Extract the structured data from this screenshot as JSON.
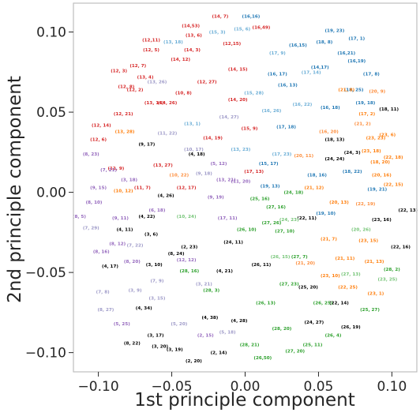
{
  "chart_data": {
    "type": "scatter",
    "title": "",
    "xlabel": "1st principle component",
    "ylabel": "2nd principle component",
    "xlim": [
      -0.117,
      0.117
    ],
    "ylim": [
      -0.112,
      0.118
    ],
    "xticks": [
      -0.1,
      -0.05,
      0.0,
      0.05,
      0.1
    ],
    "xtick_labels": [
      "−0.10",
      "−0.05",
      "0.00",
      "0.05",
      "0.10"
    ],
    "yticks": [
      0.1,
      0.05,
      0.0,
      -0.05,
      -0.1
    ],
    "ytick_labels": [
      "0.10",
      "0.05",
      "0.00",
      "−0.05",
      "−0.10"
    ],
    "grid": false,
    "legend": false,
    "point_label_format": "(i, j)",
    "series_colors": [
      "#d62728",
      "#ff7f0e",
      "#1f77b4",
      "#2ca02c",
      "#9467bd",
      "#000000",
      "#9e9ac8",
      "#6baed6",
      "#fd8d3c",
      "#74c476"
    ],
    "points": [
      {
        "label": "(16,16)",
        "x": 0.004,
        "y": 0.109,
        "c": 2
      },
      {
        "label": "(14, 7)",
        "x": -0.017,
        "y": 0.109,
        "c": 0
      },
      {
        "label": "(14,53)",
        "x": -0.037,
        "y": 0.103,
        "c": 0
      },
      {
        "label": "(16,49)",
        "x": 0.011,
        "y": 0.102,
        "c": 0
      },
      {
        "label": "(13, 6)",
        "x": -0.035,
        "y": 0.097,
        "c": 0
      },
      {
        "label": "(12,11)",
        "x": -0.064,
        "y": 0.094,
        "c": 0
      },
      {
        "label": "(12, 5)",
        "x": -0.064,
        "y": 0.088,
        "c": 0
      },
      {
        "label": "(14, 3)",
        "x": -0.036,
        "y": 0.088,
        "c": 0
      },
      {
        "label": "(12,15)",
        "x": -0.009,
        "y": 0.092,
        "c": 0
      },
      {
        "label": "(16,15)",
        "x": 0.036,
        "y": 0.091,
        "c": 2
      },
      {
        "label": "(16,21)",
        "x": 0.069,
        "y": 0.086,
        "c": 2
      },
      {
        "label": "(16,19)",
        "x": 0.076,
        "y": 0.081,
        "c": 2
      },
      {
        "label": "(18, 8)",
        "x": 0.054,
        "y": 0.093,
        "c": 2
      },
      {
        "label": "(12, 7)",
        "x": -0.073,
        "y": 0.078,
        "c": 0
      },
      {
        "label": "(14, 12)",
        "x": -0.044,
        "y": 0.082,
        "c": 0
      },
      {
        "label": "(13, 4)",
        "x": -0.068,
        "y": 0.071,
        "c": 0
      },
      {
        "label": "(12, 8)",
        "x": -0.081,
        "y": 0.065,
        "c": 0
      },
      {
        "label": "(12, 2)",
        "x": -0.075,
        "y": 0.063,
        "c": 0
      },
      {
        "label": "(14, 15)",
        "x": -0.005,
        "y": 0.076,
        "c": 0
      },
      {
        "label": "(16, 17)",
        "x": 0.022,
        "y": 0.073,
        "c": 2
      },
      {
        "label": "(16, 13)",
        "x": 0.029,
        "y": 0.066,
        "c": 2
      },
      {
        "label": "(14,17)",
        "x": 0.051,
        "y": 0.077,
        "c": 2
      },
      {
        "label": "(17, 8)",
        "x": 0.086,
        "y": 0.073,
        "c": 2
      },
      {
        "label": "(13, 14)",
        "x": -0.062,
        "y": 0.055,
        "c": 0
      },
      {
        "label": "(14, 26)",
        "x": -0.053,
        "y": 0.055,
        "c": 0
      },
      {
        "label": "(14, 20)",
        "x": -0.005,
        "y": 0.057,
        "c": 0
      },
      {
        "label": "(12, 21)",
        "x": -0.083,
        "y": 0.048,
        "c": 0
      },
      {
        "label": "(12, 14)",
        "x": -0.098,
        "y": 0.041,
        "c": 0
      },
      {
        "label": "(13, 28)",
        "x": -0.082,
        "y": 0.037,
        "c": 1
      },
      {
        "label": "(16, 18)",
        "x": 0.058,
        "y": 0.052,
        "c": 2
      },
      {
        "label": "(18, 11)",
        "x": 0.098,
        "y": 0.051,
        "c": 5
      },
      {
        "label": "(17, 2)",
        "x": 0.083,
        "y": 0.048,
        "c": 1
      },
      {
        "label": "(21, 2)",
        "x": 0.08,
        "y": 0.042,
        "c": 8
      },
      {
        "label": "(16, 20)",
        "x": 0.057,
        "y": 0.037,
        "c": 8
      },
      {
        "label": "(12, 6)",
        "x": -0.1,
        "y": 0.032,
        "c": 0
      },
      {
        "label": "(8, 23)",
        "x": -0.105,
        "y": 0.023,
        "c": 4
      },
      {
        "label": "(12, 9)",
        "x": -0.088,
        "y": 0.014,
        "c": 0
      },
      {
        "label": "(13, 27)",
        "x": -0.056,
        "y": 0.016,
        "c": 0
      },
      {
        "label": "(4, 18)",
        "x": -0.033,
        "y": 0.023,
        "c": 5
      },
      {
        "label": "(3, 18)",
        "x": -0.079,
        "y": 0.007,
        "c": 4
      },
      {
        "label": "(10, 12)",
        "x": -0.083,
        "y": 0.0,
        "c": 1
      },
      {
        "label": "(11, 7)",
        "x": -0.07,
        "y": 0.002,
        "c": 0
      },
      {
        "label": "(9, 15)",
        "x": -0.1,
        "y": 0.002,
        "c": 4
      },
      {
        "label": "(4, 26)",
        "x": -0.054,
        "y": -0.003,
        "c": 5
      },
      {
        "label": "(12, 17)",
        "x": -0.04,
        "y": 0.002,
        "c": 0
      },
      {
        "label": "(8, 10)",
        "x": -0.103,
        "y": -0.007,
        "c": 4
      },
      {
        "label": "(9, 11)",
        "x": -0.085,
        "y": -0.017,
        "c": 4
      },
      {
        "label": "(4, 22)",
        "x": -0.067,
        "y": -0.016,
        "c": 5
      },
      {
        "label": "(4, 11)",
        "x": -0.082,
        "y": -0.024,
        "c": 5
      },
      {
        "label": "(3, 6)",
        "x": -0.064,
        "y": -0.027,
        "c": 5
      },
      {
        "label": "(7, 29)",
        "x": -0.105,
        "y": -0.023,
        "c": 6
      },
      {
        "label": "(8, 5)",
        "x": -0.113,
        "y": -0.016,
        "c": 4
      },
      {
        "label": "(8, 16)",
        "x": -0.098,
        "y": -0.038,
        "c": 4
      },
      {
        "label": "(4, 17)",
        "x": -0.092,
        "y": -0.047,
        "c": 5
      },
      {
        "label": "(8, 20)",
        "x": -0.077,
        "y": -0.044,
        "c": 4
      },
      {
        "label": "(3, 10)",
        "x": -0.062,
        "y": -0.046,
        "c": 5
      },
      {
        "label": "(7, 9)",
        "x": -0.06,
        "y": -0.056,
        "c": 6
      },
      {
        "label": "(4, 34)",
        "x": -0.069,
        "y": -0.073,
        "c": 5
      },
      {
        "label": "(5, 25)",
        "x": -0.084,
        "y": -0.083,
        "c": 4
      },
      {
        "label": "(8, 22)",
        "x": -0.077,
        "y": -0.095,
        "c": 5
      },
      {
        "label": "(3, 20)",
        "x": -0.058,
        "y": -0.097,
        "c": 5
      },
      {
        "label": "(3, 19)",
        "x": -0.048,
        "y": -0.099,
        "c": 5
      },
      {
        "label": "(4, 38)",
        "x": -0.024,
        "y": -0.079,
        "c": 5
      },
      {
        "label": "(4, 28)",
        "x": -0.004,
        "y": -0.081,
        "c": 5
      },
      {
        "label": "(28, 3)",
        "x": -0.023,
        "y": -0.062,
        "c": 3
      },
      {
        "label": "(5, 18)",
        "x": -0.012,
        "y": -0.088,
        "c": 6
      },
      {
        "label": "(2, 14)",
        "x": -0.018,
        "y": -0.101,
        "c": 5
      },
      {
        "label": "(26,50)",
        "x": 0.012,
        "y": -0.104,
        "c": 3
      },
      {
        "label": "(27, 20)",
        "x": 0.034,
        "y": -0.1,
        "c": 3
      },
      {
        "label": "(25, 11)",
        "x": 0.046,
        "y": -0.096,
        "c": 3
      },
      {
        "label": "(26, 19)",
        "x": 0.072,
        "y": -0.085,
        "c": 5
      },
      {
        "label": "(22, 14)",
        "x": 0.064,
        "y": -0.07,
        "c": 5
      },
      {
        "label": "(22, 25)",
        "x": 0.07,
        "y": -0.06,
        "c": 1
      },
      {
        "label": "(23, 1)",
        "x": 0.089,
        "y": -0.064,
        "c": 1
      },
      {
        "label": "(22, 16)",
        "x": 0.106,
        "y": -0.035,
        "c": 5
      },
      {
        "label": "(28, 2)",
        "x": 0.1,
        "y": -0.049,
        "c": 3
      },
      {
        "label": "(21, 11)",
        "x": 0.068,
        "y": -0.042,
        "c": 1
      },
      {
        "label": "(23, 15)",
        "x": 0.084,
        "y": -0.031,
        "c": 1
      },
      {
        "label": "(21, 7)",
        "x": 0.057,
        "y": -0.03,
        "c": 1
      },
      {
        "label": "(23, 16)",
        "x": 0.093,
        "y": -0.018,
        "c": 5
      },
      {
        "label": "(22, 13)",
        "x": 0.111,
        "y": -0.012,
        "c": 5
      },
      {
        "label": "(22, 15)",
        "x": 0.101,
        "y": 0.004,
        "c": 1
      },
      {
        "label": "(19, 21)",
        "x": 0.09,
        "y": 0.001,
        "c": 2
      },
      {
        "label": "(18, 20)",
        "x": 0.092,
        "y": 0.018,
        "c": 1
      },
      {
        "label": "(20, 16)",
        "x": 0.093,
        "y": 0.01,
        "c": 1
      },
      {
        "label": "(18, 22)",
        "x": 0.073,
        "y": 0.012,
        "c": 2
      },
      {
        "label": "(23, 6)",
        "x": 0.097,
        "y": 0.035,
        "c": 1
      },
      {
        "label": "(24, 3)",
        "x": 0.073,
        "y": 0.024,
        "c": 5
      },
      {
        "label": "(19, 10)",
        "x": 0.055,
        "y": -0.014,
        "c": 2
      },
      {
        "label": "(22, 11)",
        "x": 0.042,
        "y": -0.017,
        "c": 5
      },
      {
        "label": "(27, 16)",
        "x": 0.021,
        "y": -0.01,
        "c": 3
      },
      {
        "label": "(27, 10)",
        "x": 0.027,
        "y": -0.025,
        "c": 3
      },
      {
        "label": "(27, 7)",
        "x": 0.037,
        "y": -0.041,
        "c": 3
      },
      {
        "label": "(26, 11)",
        "x": 0.011,
        "y": -0.046,
        "c": 5
      },
      {
        "label": "(26, 25)",
        "x": 0.053,
        "y": -0.07,
        "c": 3
      },
      {
        "label": "(23, 10)",
        "x": 0.058,
        "y": -0.053,
        "c": 1
      },
      {
        "label": "(28, 16)",
        "x": -0.038,
        "y": -0.05,
        "c": 3
      },
      {
        "label": "(12, 12)",
        "x": -0.04,
        "y": -0.043,
        "c": 4
      },
      {
        "label": "(8, 24)",
        "x": -0.047,
        "y": -0.039,
        "c": 5
      },
      {
        "label": "(24, 11)",
        "x": -0.008,
        "y": -0.032,
        "c": 5
      },
      {
        "label": "(26, 10)",
        "x": 0.001,
        "y": -0.024,
        "c": 3
      },
      {
        "label": "(17, 11)",
        "x": -0.012,
        "y": -0.017,
        "c": 4
      },
      {
        "label": "(15, 17)",
        "x": 0.016,
        "y": 0.017,
        "c": 2
      },
      {
        "label": "(13, 21)",
        "x": -0.013,
        "y": 0.007,
        "c": 4
      },
      {
        "label": "(17, 13)",
        "x": 0.006,
        "y": 0.012,
        "c": 0
      },
      {
        "label": "(19, 13)",
        "x": 0.017,
        "y": 0.003,
        "c": 2
      },
      {
        "label": "(18, 16)",
        "x": 0.049,
        "y": 0.01,
        "c": 2
      },
      {
        "label": "(20, 11)",
        "x": 0.04,
        "y": 0.022,
        "c": 8
      },
      {
        "label": "(17, 18)",
        "x": 0.028,
        "y": 0.04,
        "c": 2
      },
      {
        "label": "(15, 9)",
        "x": 0.003,
        "y": 0.039,
        "c": 0
      },
      {
        "label": "(14, 19)",
        "x": -0.022,
        "y": 0.033,
        "c": 0
      },
      {
        "label": "(13, 1)",
        "x": -0.036,
        "y": 0.042,
        "c": 7
      },
      {
        "label": "(10, 17)",
        "x": -0.035,
        "y": 0.026,
        "c": 6
      },
      {
        "label": "(5, 12)",
        "x": -0.018,
        "y": 0.017,
        "c": 4
      },
      {
        "label": "(11, 20)",
        "x": -0.003,
        "y": 0.006,
        "c": 4
      },
      {
        "label": "(9, 19)",
        "x": -0.02,
        "y": -0.004,
        "c": 4
      },
      {
        "label": "(24, 18)",
        "x": 0.033,
        "y": -0.001,
        "c": 3
      },
      {
        "label": "(25, 16)",
        "x": 0.01,
        "y": -0.005,
        "c": 3
      },
      {
        "label": "(21, 12)",
        "x": 0.047,
        "y": 0.002,
        "c": 1
      },
      {
        "label": "(16, 22)",
        "x": 0.039,
        "y": 0.054,
        "c": 7
      },
      {
        "label": "(18, 25)",
        "x": 0.074,
        "y": 0.063,
        "c": 2
      },
      {
        "label": "(15, 28)",
        "x": 0.006,
        "y": 0.061,
        "c": 7
      },
      {
        "label": "(12, 27)",
        "x": -0.026,
        "y": 0.068,
        "c": 0
      },
      {
        "label": "(10, 8)",
        "x": -0.042,
        "y": 0.061,
        "c": 0
      },
      {
        "label": "(11, 22)",
        "x": -0.053,
        "y": 0.036,
        "c": 6
      },
      {
        "label": "(7, 21)",
        "x": -0.093,
        "y": 0.013,
        "c": 4
      },
      {
        "label": "(9, 17)",
        "x": -0.067,
        "y": 0.029,
        "c": 5
      },
      {
        "label": "(12, 3)",
        "x": -0.086,
        "y": 0.075,
        "c": 0
      },
      {
        "label": "(15, 3)",
        "x": -0.019,
        "y": 0.099,
        "c": 7
      },
      {
        "label": "(17, 9)",
        "x": 0.022,
        "y": 0.086,
        "c": 7
      },
      {
        "label": "(17, 14)",
        "x": 0.045,
        "y": 0.074,
        "c": 7
      },
      {
        "label": "(21, 8)",
        "x": 0.069,
        "y": 0.063,
        "c": 1
      },
      {
        "label": "(20, 9)",
        "x": 0.09,
        "y": 0.062,
        "c": 8
      },
      {
        "label": "(19, 18)",
        "x": 0.082,
        "y": 0.055,
        "c": 2
      },
      {
        "label": "(23, 23)",
        "x": 0.089,
        "y": 0.033,
        "c": 1
      },
      {
        "label": "(22, 18)",
        "x": 0.101,
        "y": 0.021,
        "c": 1
      },
      {
        "label": "(23, 18)",
        "x": 0.086,
        "y": 0.025,
        "c": 1
      },
      {
        "label": "(22, 19)",
        "x": 0.082,
        "y": -0.008,
        "c": 8
      },
      {
        "label": "(20, 13)",
        "x": 0.064,
        "y": -0.007,
        "c": 1
      },
      {
        "label": "(21, 13)",
        "x": 0.088,
        "y": -0.044,
        "c": 1
      },
      {
        "label": "(27, 13)",
        "x": 0.072,
        "y": -0.052,
        "c": 9
      },
      {
        "label": "(24, 27)",
        "x": 0.047,
        "y": -0.082,
        "c": 5
      },
      {
        "label": "(28, 20)",
        "x": 0.025,
        "y": -0.086,
        "c": 3
      },
      {
        "label": "(26, 13)",
        "x": 0.014,
        "y": -0.07,
        "c": 3
      },
      {
        "label": "(28, 21)",
        "x": 0.003,
        "y": -0.096,
        "c": 3
      },
      {
        "label": "(2, 15)",
        "x": -0.027,
        "y": -0.09,
        "c": 4
      },
      {
        "label": "(5, 20)",
        "x": -0.045,
        "y": -0.083,
        "c": 6
      },
      {
        "label": "(3, 17)",
        "x": -0.061,
        "y": -0.09,
        "c": 5
      },
      {
        "label": "(3, 15)",
        "x": -0.06,
        "y": -0.067,
        "c": 6
      },
      {
        "label": "(3, 9)",
        "x": -0.075,
        "y": -0.062,
        "c": 6
      },
      {
        "label": "(7, 8)",
        "x": -0.097,
        "y": -0.063,
        "c": 6
      },
      {
        "label": "(8, 12)",
        "x": -0.087,
        "y": -0.033,
        "c": 4
      },
      {
        "label": "(7, 22)",
        "x": -0.075,
        "y": -0.034,
        "c": 6
      },
      {
        "label": "(2, 23)",
        "x": -0.038,
        "y": -0.035,
        "c": 5
      },
      {
        "label": "(3, 21)",
        "x": -0.028,
        "y": -0.058,
        "c": 6
      },
      {
        "label": "(4, 21)",
        "x": -0.014,
        "y": -0.05,
        "c": 5
      },
      {
        "label": "(27, 23)",
        "x": 0.03,
        "y": -0.058,
        "c": 3
      },
      {
        "label": "(25, 20)",
        "x": 0.043,
        "y": -0.06,
        "c": 5
      },
      {
        "label": "(21, 20)",
        "x": 0.041,
        "y": -0.045,
        "c": 8
      },
      {
        "label": "(26, 15)",
        "x": 0.024,
        "y": -0.041,
        "c": 9
      },
      {
        "label": "(27, 26)",
        "x": 0.018,
        "y": -0.02,
        "c": 3
      },
      {
        "label": "(24, 23)",
        "x": 0.03,
        "y": -0.018,
        "c": 9
      },
      {
        "label": "(17, 23)",
        "x": 0.025,
        "y": 0.023,
        "c": 7
      },
      {
        "label": "(13, 23)",
        "x": -0.003,
        "y": 0.026,
        "c": 7
      },
      {
        "label": "(9, 18)",
        "x": -0.028,
        "y": 0.011,
        "c": 6
      },
      {
        "label": "(10, 22)",
        "x": -0.045,
        "y": 0.01,
        "c": 8
      },
      {
        "label": "(10, 24)",
        "x": -0.04,
        "y": -0.016,
        "c": 9
      },
      {
        "label": "(6, 18)",
        "x": -0.06,
        "y": -0.012,
        "c": 4
      },
      {
        "label": "(14, 27)",
        "x": -0.011,
        "y": 0.046,
        "c": 6
      },
      {
        "label": "(16, 26)",
        "x": 0.018,
        "y": 0.05,
        "c": 7
      },
      {
        "label": "(18, 13)",
        "x": 0.061,
        "y": 0.032,
        "c": 5
      },
      {
        "label": "(24, 24)",
        "x": 0.061,
        "y": 0.02,
        "c": 5
      },
      {
        "label": "(20, 26)",
        "x": 0.079,
        "y": -0.024,
        "c": 9
      },
      {
        "label": "(23, 25)",
        "x": 0.097,
        "y": -0.055,
        "c": 9
      },
      {
        "label": "(13, 26)",
        "x": -0.06,
        "y": 0.068,
        "c": 6
      },
      {
        "label": "(13, 18)",
        "x": -0.049,
        "y": 0.093,
        "c": 7
      },
      {
        "label": "(15, 6)",
        "x": -0.002,
        "y": 0.101,
        "c": 7
      },
      {
        "label": "(19, 23)",
        "x": 0.061,
        "y": 0.1,
        "c": 2
      },
      {
        "label": "(17, 1)",
        "x": 0.076,
        "y": 0.095,
        "c": 2
      },
      {
        "label": "(8, 27)",
        "x": -0.095,
        "y": -0.074,
        "c": 6
      },
      {
        "label": "(2, 20)",
        "x": -0.035,
        "y": -0.106,
        "c": 5
      },
      {
        "label": "(26, 4)",
        "x": 0.06,
        "y": -0.09,
        "c": 3
      },
      {
        "label": "(25, 27)",
        "x": 0.085,
        "y": -0.074,
        "c": 3
      }
    ]
  }
}
